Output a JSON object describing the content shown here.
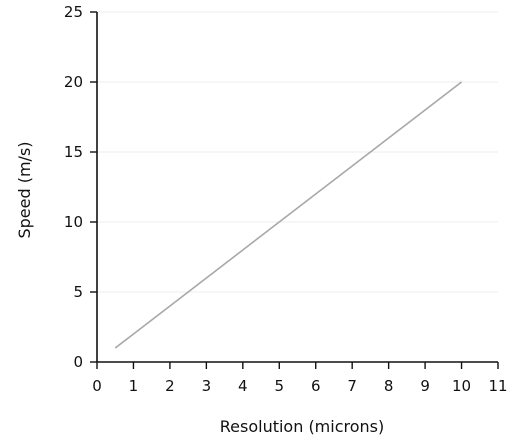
{
  "chart_data": {
    "type": "line",
    "title": "",
    "xlabel": "Resolution (microns)",
    "ylabel": "Speed (m/s)",
    "xlim": [
      0,
      11
    ],
    "ylim": [
      0,
      25
    ],
    "x_ticks": [
      0,
      1,
      2,
      3,
      4,
      5,
      6,
      7,
      8,
      9,
      10,
      11
    ],
    "y_ticks": [
      0,
      5,
      10,
      15,
      20,
      25
    ],
    "grid": "horizontal",
    "legend": "none",
    "series": [
      {
        "x": [
          0.5,
          10
        ],
        "y": [
          1,
          20
        ],
        "color": "#a8a8a8"
      }
    ]
  }
}
